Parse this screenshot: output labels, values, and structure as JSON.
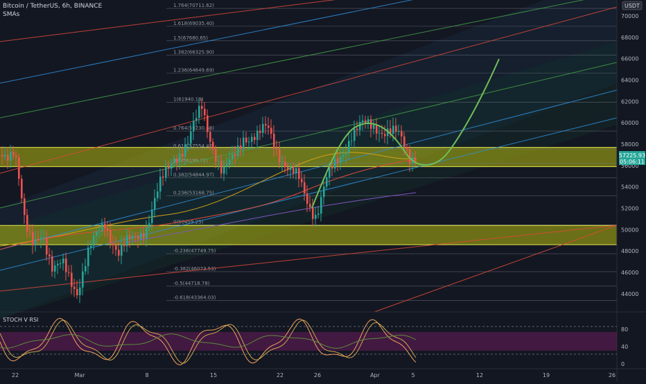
{
  "header": {
    "symbol_title": "Bitcoin / TetherUS, 6h, BINANCE",
    "indicator_label": "SMAs",
    "currency_badge": "USDT"
  },
  "price_scale": {
    "ticks": [
      "70000",
      "68000",
      "66000",
      "64000",
      "62000",
      "60000",
      "58000",
      "56000",
      "54000",
      "52000",
      "50000",
      "48000",
      "46000",
      "44000"
    ],
    "last_price": "57225.93",
    "last_price_countdown": "05:06:11"
  },
  "fib_levels": [
    {
      "label": "1.764(70711.62)",
      "price": 70711.62
    },
    {
      "label": "1.618(69035.40)",
      "price": 69035.4
    },
    {
      "label": "1.5(67680.65)",
      "price": 67680.65
    },
    {
      "label": "1.382(66325.90)",
      "price": 66325.9
    },
    {
      "label": "1.236(64649.69)",
      "price": 64649.69
    },
    {
      "label": "1(61940.18)",
      "price": 61940.18
    },
    {
      "label": "0.764(59230.68)",
      "price": 59230.68
    },
    {
      "label": "0.618(57554.47)",
      "price": 57554.47
    },
    {
      "label": "0.5(56199.72)",
      "price": 56199.72
    },
    {
      "label": "0.382(54844.97)",
      "price": 54844.97
    },
    {
      "label": "0.236(53168.75)",
      "price": 53168.75
    },
    {
      "label": "0(50459.25)",
      "price": 50459.25
    },
    {
      "label": "-0.236(47749.75)",
      "price": 47749.75
    },
    {
      "label": "-0.382(46073.53)",
      "price": 46073.53
    },
    {
      "label": "-0.5(44718.78)",
      "price": 44718.78
    },
    {
      "label": "-0.618(43364.03)",
      "price": 43364.03
    }
  ],
  "zones": [
    {
      "from": 55900,
      "to": 57700,
      "color": "#b5b80f"
    },
    {
      "from": 48600,
      "to": 50400,
      "color": "#b5b80f"
    }
  ],
  "oscillator": {
    "title": "STOCH V RSI",
    "ticks": [
      "80",
      "40",
      "0"
    ]
  },
  "time_axis": {
    "labels": [
      "22",
      "Mar",
      "8",
      "15",
      "22",
      "26",
      "Apr",
      "5",
      "12",
      "19",
      "26"
    ]
  },
  "colors": {
    "background": "#131722",
    "up_candle": "#26a69a",
    "down_candle": "#ef5350",
    "zone": "#b5b80f",
    "projection": "#6fbf5a",
    "channel_blue": "#2f8fdc",
    "channel_green": "#43a047",
    "channel_red": "#e04a3a",
    "stoch_k": "#f4a261",
    "stoch_d": "#c9a94f",
    "rsi": "#5b8c3e",
    "osc_band": "#6a1b5a"
  }
}
